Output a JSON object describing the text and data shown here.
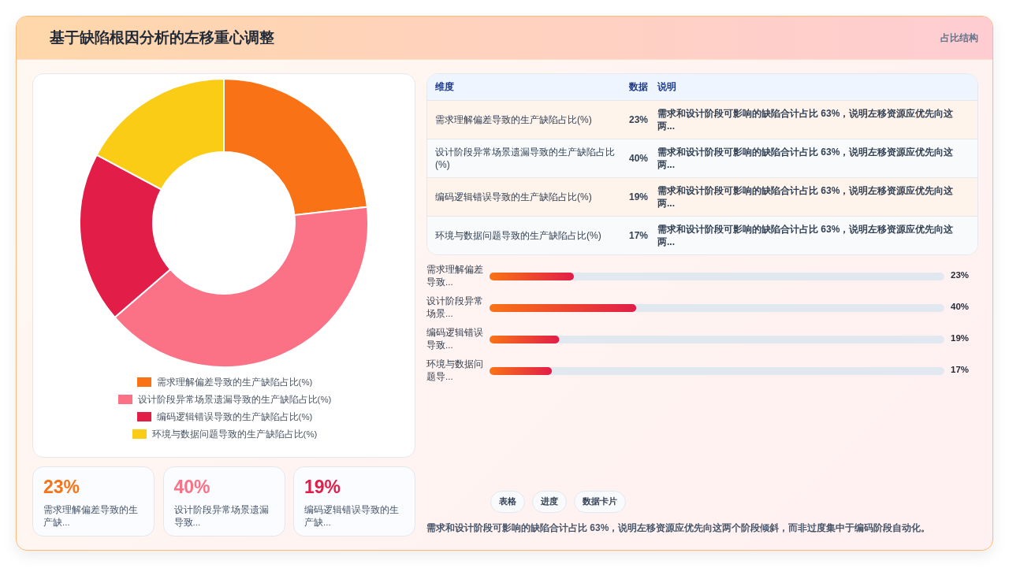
{
  "chart_data": [
    {
      "type": "other",
      "title": "基于缺陷根因分析的左移重心调整",
      "subtitle": "占比结构"
    },
    {
      "type": "donut",
      "categories": [
        "需求理解偏差导致的生产缺陷占比(%)",
        "设计阶段异常场景遗漏导致的生产缺陷占比(%)",
        "编码逻辑错误导致的生产缺陷占比(%)",
        "环境与数据问题导致的生产缺陷占比(%)"
      ],
      "values": [
        23,
        40,
        19,
        17
      ],
      "colors": [
        "#f97316",
        "#fb7185",
        "#e11d48",
        "#facc15"
      ],
      "legend": "bottom"
    },
    {
      "type": "other",
      "categories": [
        "需求理解偏差导致的生产缺陷占比(%)",
        "设计阶段异常场景遗漏导致的生产缺陷占比(%)",
        "编码逻辑错误导致的生产缺陷占比(%)",
        "环境与数据问题导致的生产缺陷占比(%)"
      ],
      "value_labels": [
        "23%",
        "40%",
        "19%",
        "17%"
      ],
      "annotations": [
        "维度",
        "数据",
        "说明",
        "需求和设计阶段可影响的缺陷合计占比 63%，说明左移资源应优先向这两...",
        "需求和设计阶段可影响的缺陷合计占比 63%，说明左移资源应优先向这两...",
        "需求和设计阶段可影响的缺陷合计占比 63%，说明左移资源应优先向这两...",
        "需求和设计阶段可影响的缺陷合计占比 63%，说明左移资源应优先向这两..."
      ]
    },
    {
      "type": "bar",
      "orientation": "horizontal",
      "categories": [
        "需求理解偏差导致...",
        "设计阶段异常场景...",
        "编码逻辑错误导致...",
        "环境与数据问题导..."
      ],
      "values": [
        23,
        40,
        19,
        17
      ],
      "value_labels": [
        "23%",
        "40%",
        "19%",
        "17%"
      ],
      "color": "#e11d48",
      "xlim": [
        0,
        124
      ],
      "tick_labels": "y"
    },
    {
      "type": "other",
      "categories": [
        "需求理解偏差导致的生产缺...",
        "设计阶段异常场景遗漏导致...",
        "编码逻辑错误导致的生产缺..."
      ],
      "value_labels": [
        "23%",
        "40%",
        "19%"
      ]
    },
    {
      "type": "other",
      "annotations": [
        "表格",
        "进度",
        "数据卡片",
        "需求和设计阶段可影响的缺陷合计占比 63%，说明左移资源应优先向这两个阶段倾斜，而非过度集中于编码阶段自动化。"
      ]
    }
  ]
}
